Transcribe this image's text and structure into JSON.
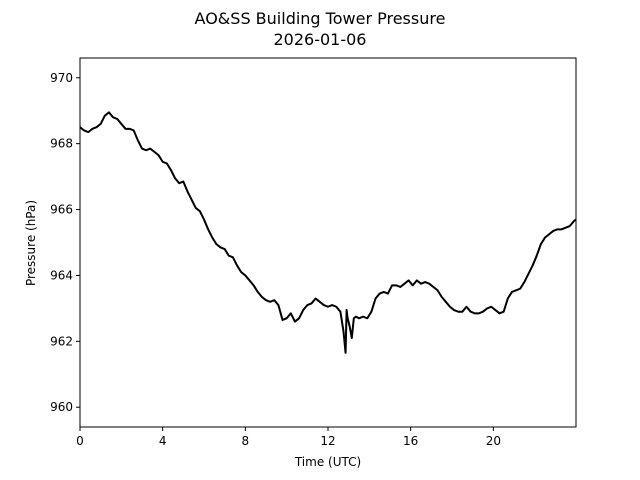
{
  "chart_data": {
    "type": "line",
    "title": "AO&SS Building Tower Pressure",
    "subtitle": "2026-01-06",
    "xlabel": "Time (UTC)",
    "ylabel": "Pressure (hPa)",
    "xlim": [
      0,
      24
    ],
    "ylim": [
      959.4,
      970.6
    ],
    "xticks": [
      0,
      4,
      8,
      12,
      16,
      20
    ],
    "xtick_labels": [
      "0",
      "4",
      "8",
      "12",
      "16",
      "20"
    ],
    "yticks": [
      960,
      962,
      964,
      966,
      968,
      970
    ],
    "ytick_labels": [
      "960",
      "962",
      "964",
      "966",
      "968",
      "970"
    ],
    "grid": false,
    "series_color": "#000000",
    "series": [
      {
        "x": [
          0,
          0.2,
          0.4,
          0.6,
          0.8,
          1.0,
          1.2,
          1.4,
          1.6,
          1.8,
          2.0,
          2.2,
          2.4,
          2.6,
          2.8,
          3.0,
          3.2,
          3.4,
          3.6,
          3.8,
          4.0,
          4.2,
          4.4,
          4.6,
          4.8,
          5.0,
          5.2,
          5.4,
          5.6,
          5.8,
          6.0,
          6.2,
          6.4,
          6.6,
          6.8,
          7.0,
          7.2,
          7.4,
          7.6,
          7.8,
          8.0,
          8.2,
          8.4,
          8.6,
          8.8,
          9.0,
          9.2,
          9.4,
          9.6,
          9.8,
          10.0,
          10.2,
          10.4,
          10.6,
          10.8,
          11.0,
          11.2,
          11.4,
          11.6,
          11.8,
          12.0,
          12.2,
          12.4,
          12.6,
          12.75,
          12.85,
          12.9,
          12.95,
          13.05,
          13.15,
          13.25,
          13.35,
          13.5,
          13.7,
          13.9,
          14.1,
          14.3,
          14.5,
          14.7,
          14.9,
          15.1,
          15.3,
          15.5,
          15.7,
          15.9,
          16.1,
          16.3,
          16.5,
          16.7,
          16.9,
          17.1,
          17.3,
          17.5,
          17.7,
          17.9,
          18.1,
          18.3,
          18.5,
          18.7,
          18.9,
          19.1,
          19.3,
          19.5,
          19.7,
          19.9,
          20.1,
          20.3,
          20.5,
          20.7,
          20.9,
          21.1,
          21.3,
          21.5,
          21.7,
          21.9,
          22.1,
          22.3,
          22.5,
          22.7,
          22.9,
          23.1,
          23.3,
          23.5,
          23.7,
          23.9,
          24.0
        ],
        "y": [
          968.5,
          968.4,
          968.35,
          968.45,
          968.5,
          968.6,
          968.85,
          968.95,
          968.8,
          968.75,
          968.6,
          968.45,
          968.45,
          968.4,
          968.1,
          967.85,
          967.8,
          967.85,
          967.75,
          967.65,
          967.45,
          967.4,
          967.2,
          966.95,
          966.8,
          966.85,
          966.55,
          966.3,
          966.05,
          965.95,
          965.7,
          965.4,
          965.15,
          964.95,
          964.85,
          964.8,
          964.6,
          964.55,
          964.3,
          964.1,
          964.0,
          963.85,
          963.7,
          963.5,
          963.35,
          963.25,
          963.2,
          963.25,
          963.1,
          962.65,
          962.7,
          962.85,
          962.6,
          962.7,
          962.95,
          963.1,
          963.15,
          963.3,
          963.2,
          963.1,
          963.05,
          963.1,
          963.05,
          962.9,
          962.3,
          961.65,
          962.95,
          962.7,
          962.45,
          962.1,
          962.7,
          962.75,
          962.7,
          962.75,
          962.7,
          962.9,
          963.3,
          963.45,
          963.5,
          963.45,
          963.7,
          963.7,
          963.65,
          963.75,
          963.85,
          963.7,
          963.85,
          963.75,
          963.8,
          963.75,
          963.65,
          963.55,
          963.35,
          963.2,
          963.05,
          962.95,
          962.9,
          962.9,
          963.05,
          962.9,
          962.85,
          962.85,
          962.9,
          963.0,
          963.05,
          962.95,
          962.85,
          962.9,
          963.3,
          963.5,
          963.55,
          963.6,
          963.8,
          964.05,
          964.3,
          964.6,
          964.95,
          965.15,
          965.25,
          965.35,
          965.4,
          965.4,
          965.45,
          965.5,
          965.65,
          965.7
        ]
      }
    ]
  }
}
